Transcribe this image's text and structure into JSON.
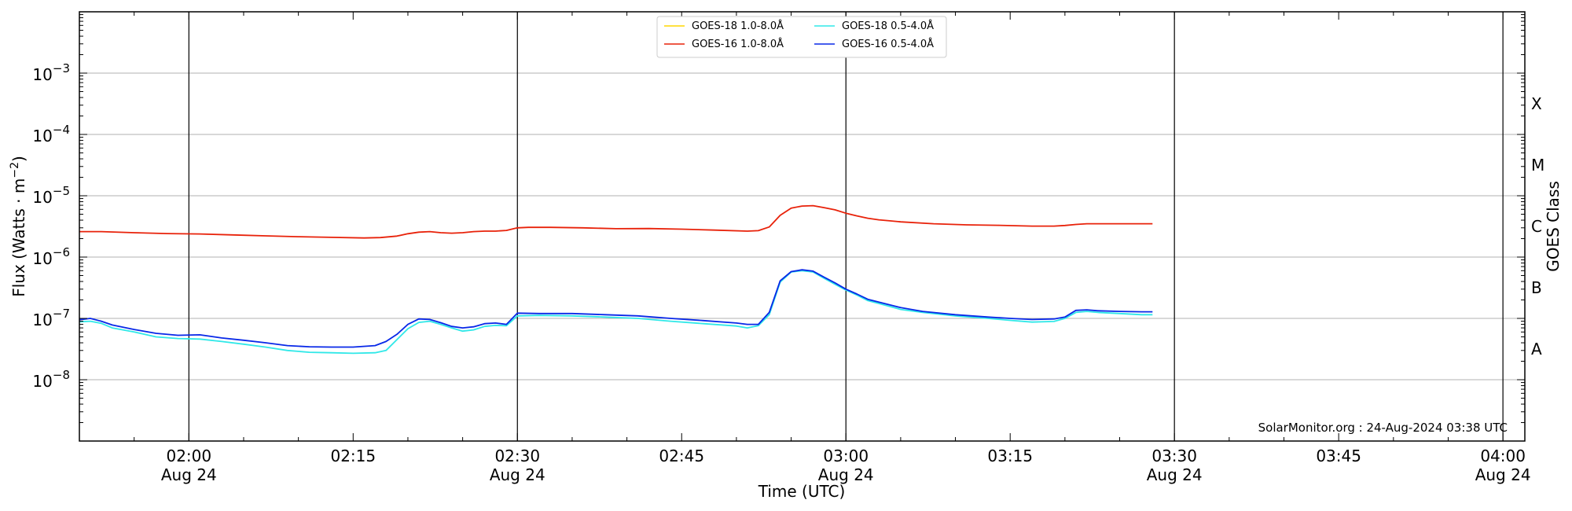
{
  "chart_data": {
    "type": "line",
    "xlabel": "Time (UTC)",
    "ylabel": "Flux (Watts · m",
    "ylabel_sup": "−2",
    "ylabel_close": ")",
    "right_label": "GOES Class",
    "yscale": "log",
    "ylim_exp": [
      -9,
      -2
    ],
    "y_ticks": [
      {
        "exp": -8,
        "base": "10",
        "sup": "−8"
      },
      {
        "exp": -7,
        "base": "10",
        "sup": "−7"
      },
      {
        "exp": -6,
        "base": "10",
        "sup": "−6"
      },
      {
        "exp": -5,
        "base": "10",
        "sup": "−5"
      },
      {
        "exp": -4,
        "base": "10",
        "sup": "−4"
      },
      {
        "exp": -3,
        "base": "10",
        "sup": "−3"
      }
    ],
    "goes_classes": [
      {
        "label": "A",
        "exp": -7.5
      },
      {
        "label": "B",
        "exp": -6.5
      },
      {
        "label": "C",
        "exp": -5.5
      },
      {
        "label": "M",
        "exp": -4.5
      },
      {
        "label": "X",
        "exp": -3.5
      }
    ],
    "xlim_minutes": [
      110,
      242
    ],
    "x_ticks": [
      {
        "m": 120,
        "time": "02:00",
        "date": "Aug 24"
      },
      {
        "m": 135,
        "time": "02:15",
        "date": ""
      },
      {
        "m": 150,
        "time": "02:30",
        "date": "Aug 24"
      },
      {
        "m": 165,
        "time": "02:45",
        "date": ""
      },
      {
        "m": 180,
        "time": "03:00",
        "date": "Aug 24"
      },
      {
        "m": 195,
        "time": "03:15",
        "date": ""
      },
      {
        "m": 210,
        "time": "03:30",
        "date": "Aug 24"
      },
      {
        "m": 225,
        "time": "03:45",
        "date": ""
      },
      {
        "m": 240,
        "time": "04:00",
        "date": "Aug 24"
      }
    ],
    "vlines_minutes": [
      120,
      150,
      180,
      210,
      240
    ],
    "grid": "horizontal",
    "legend_position": "top-center",
    "credit": "SolarMonitor.org : 24-Aug-2024 03:38 UTC",
    "series": [
      {
        "name": "GOES-18 1.0-8.0Å",
        "color": "#ffd700",
        "x": [],
        "y": []
      },
      {
        "name": "GOES-16 1.0-8.0Å",
        "color": "#e8220a",
        "x": [
          110,
          112,
          115,
          118,
          121,
          124,
          127,
          130,
          133,
          136,
          137.5,
          139,
          140,
          141,
          142,
          143,
          144,
          145,
          146,
          147,
          148,
          149,
          150,
          151,
          153,
          156,
          159,
          162,
          165,
          168,
          171,
          172,
          173,
          174,
          175,
          176,
          177,
          178,
          179,
          180,
          181,
          182,
          183,
          184,
          185,
          188,
          191,
          194,
          197,
          199,
          200,
          201,
          202,
          203,
          204,
          205,
          206,
          207,
          208
        ],
        "y": [
          2.6e-06,
          2.6e-06,
          2.5e-06,
          2.42e-06,
          2.38e-06,
          2.3e-06,
          2.22e-06,
          2.15e-06,
          2.1e-06,
          2.05e-06,
          2.08e-06,
          2.2e-06,
          2.4e-06,
          2.55e-06,
          2.6e-06,
          2.5e-06,
          2.45e-06,
          2.5e-06,
          2.6e-06,
          2.65e-06,
          2.65e-06,
          2.72e-06,
          3e-06,
          3.05e-06,
          3.05e-06,
          3e-06,
          2.9e-06,
          2.92e-06,
          2.85e-06,
          2.75e-06,
          2.65e-06,
          2.7e-06,
          3.1e-06,
          4.8e-06,
          6.3e-06,
          6.8e-06,
          6.9e-06,
          6.4e-06,
          5.9e-06,
          5.2e-06,
          4.7e-06,
          4.3e-06,
          4.05e-06,
          3.9e-06,
          3.75e-06,
          3.5e-06,
          3.35e-06,
          3.3e-06,
          3.2e-06,
          3.2e-06,
          3.28e-06,
          3.4e-06,
          3.5e-06,
          3.5e-06,
          3.5e-06,
          3.5e-06,
          3.5e-06,
          3.5e-06,
          3.5e-06
        ]
      },
      {
        "name": "GOES-18 0.5-4.0Å",
        "color": "#30e8e8",
        "x": [
          110,
          111,
          112,
          113,
          115,
          117,
          119,
          121,
          123,
          125,
          127,
          129,
          131,
          133,
          135,
          137,
          138,
          139,
          140,
          141,
          142,
          143,
          144,
          145,
          146,
          147,
          148,
          149,
          150,
          152,
          155,
          158,
          161,
          164,
          167,
          170,
          171,
          172,
          173,
          174,
          175,
          176,
          177,
          178,
          179,
          180,
          181,
          182,
          183,
          185,
          187,
          190,
          193,
          195,
          197,
          199,
          200,
          201,
          202,
          203,
          205,
          207,
          208
        ],
        "y": [
          8.8e-08,
          9e-08,
          8.3e-08,
          7e-08,
          6e-08,
          5e-08,
          4.7e-08,
          4.6e-08,
          4.2e-08,
          3.8e-08,
          3.4e-08,
          3e-08,
          2.8e-08,
          2.75e-08,
          2.7e-08,
          2.75e-08,
          3e-08,
          4.5e-08,
          6.8e-08,
          8.6e-08,
          9e-08,
          8e-08,
          7e-08,
          6.2e-08,
          6.5e-08,
          7.4e-08,
          7.7e-08,
          7.6e-08,
          1.1e-07,
          1.12e-07,
          1.1e-07,
          1.05e-07,
          1e-07,
          9e-08,
          8.2e-08,
          7.5e-08,
          7e-08,
          7.6e-08,
          1.15e-07,
          3.9e-07,
          5.7e-07,
          6e-07,
          5.7e-07,
          4.5e-07,
          3.6e-07,
          2.9e-07,
          2.4e-07,
          1.95e-07,
          1.75e-07,
          1.4e-07,
          1.25e-07,
          1.1e-07,
          1e-07,
          9.3e-08,
          8.7e-08,
          8.9e-08,
          1e-07,
          1.25e-07,
          1.3e-07,
          1.25e-07,
          1.2e-07,
          1.15e-07,
          1.15e-07
        ]
      },
      {
        "name": "GOES-16 0.5-4.0Å",
        "color": "#0828e8",
        "x": [
          110,
          111,
          112,
          113,
          115,
          117,
          119,
          121,
          123,
          125,
          127,
          129,
          131,
          133,
          135,
          137,
          138,
          139,
          140,
          141,
          142,
          143,
          144,
          145,
          146,
          147,
          148,
          149,
          150,
          152,
          155,
          158,
          161,
          164,
          167,
          170,
          171,
          172,
          173,
          174,
          175,
          176,
          177,
          178,
          179,
          180,
          181,
          182,
          183,
          185,
          187,
          190,
          193,
          195,
          197,
          199,
          200,
          201,
          202,
          203,
          205,
          207,
          208
        ],
        "y": [
          9.5e-08,
          1e-07,
          9e-08,
          7.8e-08,
          6.6e-08,
          5.7e-08,
          5.3e-08,
          5.4e-08,
          4.8e-08,
          4.4e-08,
          4e-08,
          3.6e-08,
          3.45e-08,
          3.4e-08,
          3.4e-08,
          3.6e-08,
          4.2e-08,
          5.5e-08,
          8e-08,
          9.8e-08,
          9.6e-08,
          8.5e-08,
          7.4e-08,
          7e-08,
          7.3e-08,
          8.2e-08,
          8.4e-08,
          8e-08,
          1.22e-07,
          1.2e-07,
          1.2e-07,
          1.15e-07,
          1.1e-07,
          1e-07,
          9.2e-08,
          8.4e-08,
          8e-08,
          8e-08,
          1.25e-07,
          4.1e-07,
          5.8e-07,
          6.2e-07,
          5.9e-07,
          4.7e-07,
          3.8e-07,
          3e-07,
          2.5e-07,
          2.05e-07,
          1.85e-07,
          1.5e-07,
          1.3e-07,
          1.15e-07,
          1.05e-07,
          1e-07,
          9.6e-08,
          9.8e-08,
          1.05e-07,
          1.35e-07,
          1.38e-07,
          1.33e-07,
          1.3e-07,
          1.28e-07,
          1.28e-07
        ]
      }
    ]
  }
}
